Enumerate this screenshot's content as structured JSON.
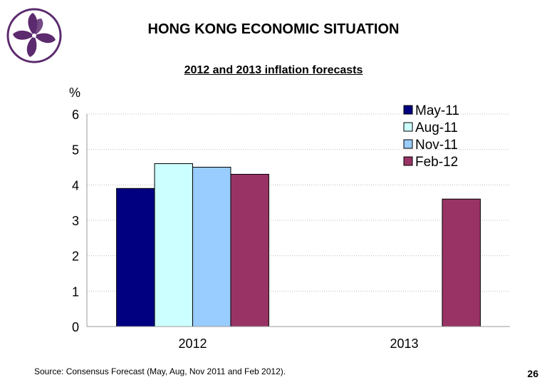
{
  "slide": {
    "title": "HONG KONG ECONOMIC SITUATION",
    "source": "Source: Consensus Forecast (May, Aug, Nov 2011 and Feb 2012).",
    "page_number": "26",
    "logo_icon": "bauhinia-flower-icon",
    "logo_color": "#5c2a6e"
  },
  "chart_data": {
    "type": "bar",
    "title": "2012 and 2013 inflation forecasts",
    "ylabel": "%",
    "xlabel": "",
    "ylim": [
      0,
      6
    ],
    "yticks": [
      "0",
      "1",
      "2",
      "3",
      "4",
      "5",
      "6"
    ],
    "grid": true,
    "legend_position": "top-right",
    "categories": [
      "2012",
      "2013"
    ],
    "series": [
      {
        "name": "May-11",
        "color": "#000080",
        "values": [
          3.9,
          null
        ]
      },
      {
        "name": "Aug-11",
        "color": "#ccffff",
        "values": [
          4.6,
          null
        ]
      },
      {
        "name": "Nov-11",
        "color": "#99ccff",
        "values": [
          4.5,
          null
        ]
      },
      {
        "name": "Feb-12",
        "color": "#993366",
        "values": [
          4.3,
          3.6
        ]
      }
    ]
  }
}
